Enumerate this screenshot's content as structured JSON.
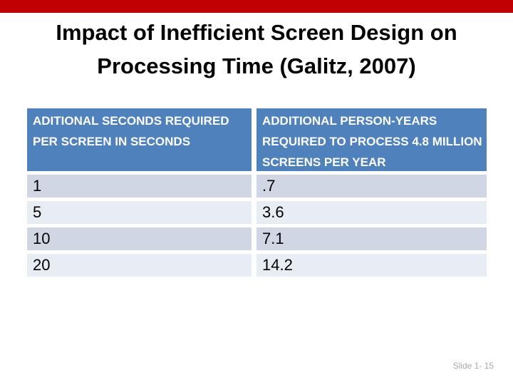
{
  "slide": {
    "title": {
      "line1": "Impact of Inefficient Screen Design on",
      "line2": "Processing Time (Galitz, 2007)"
    },
    "footer_text": "Slide 1- 15"
  },
  "chart_data": {
    "type": "table",
    "columns": [
      "ADITIONAL SECONDS REQUIRED PER SCREEN IN SECONDS",
      "ADDITIONAL PERSON-YEARS REQUIRED TO PROCESS 4.8 MILLION SCREENS PER YEAR"
    ],
    "rows": [
      [
        "1",
        ".7"
      ],
      [
        "5",
        "3.6"
      ],
      [
        "10",
        "7.1"
      ],
      [
        "20",
        "14.2"
      ]
    ]
  },
  "colors": {
    "accent-bar": "#C00000",
    "header-bg": "#4F81BD",
    "header-text": "#FFFFFF",
    "band-dark": "#D0D6E4",
    "band-light": "#E8ECF3",
    "title-text": "#000000",
    "cell-text": "#000000",
    "footer-text": "#A9A9A9"
  }
}
